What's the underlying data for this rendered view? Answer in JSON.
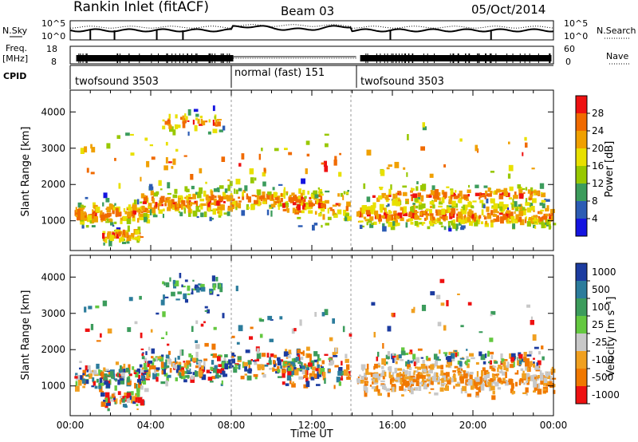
{
  "header": {
    "station": "Rankin Inlet (fitACF)",
    "beam": "Beam 03",
    "date": "05/Oct/2014"
  },
  "noise_panel": {
    "left_label": "N.Sky",
    "right_label": "N.Search",
    "left_ticks": [
      "10^5",
      "10^0"
    ],
    "right_ticks": [
      "10^5",
      "10^0"
    ]
  },
  "freq_panel": {
    "left_label_line1": "Freq.",
    "left_label_line2": "[MHz]",
    "right_label": "Nave",
    "left_ticks": [
      "18",
      "8"
    ],
    "right_ticks": [
      "60",
      "0"
    ]
  },
  "cpid": {
    "label": "CPID",
    "segments": [
      {
        "name": "twofsound 3503",
        "start_hour": 0,
        "end_hour": 8
      },
      {
        "name": "normal (fast) 151",
        "start_hour": 8,
        "end_hour": 14.2
      },
      {
        "name": "twofsound 3503",
        "start_hour": 14.2,
        "end_hour": 24
      }
    ]
  },
  "power_scale": {
    "label": "Power [dB]",
    "ticks": [
      "28",
      "24",
      "20",
      "16",
      "12",
      "8",
      "4"
    ],
    "colors": [
      "#ee1111",
      "#f06a00",
      "#f0a000",
      "#e8e000",
      "#98c800",
      "#3c9c5c",
      "#2c5cb4",
      "#1414e0"
    ]
  },
  "velocity_scale": {
    "label": "Velocity [m s⁻¹]",
    "ticks": [
      "1000",
      "500",
      "100",
      "25",
      "-25",
      "-100",
      "-500",
      "-1000"
    ],
    "colors": [
      "#1c3ca0",
      "#2c7c9c",
      "#3c9c5c",
      "#64c840",
      "#c8c8c8",
      "#f0a020",
      "#f07800",
      "#ee1111"
    ]
  },
  "x_axis": {
    "label": "Time UT",
    "ticks": [
      "00:00",
      "04:00",
      "08:00",
      "12:00",
      "16:00",
      "20:00",
      "00:00"
    ]
  },
  "chart_data": [
    {
      "type": "heatmap",
      "title": "Power",
      "ylabel": "Slant Range [km]",
      "y_ticks": [
        1000,
        2000,
        3000,
        4000
      ],
      "ylim": [
        180,
        4600
      ],
      "xlim": [
        0,
        24
      ],
      "colorbar": "Power [dB]",
      "colorbar_range": [
        0,
        30
      ]
    },
    {
      "type": "heatmap",
      "title": "Velocity",
      "ylabel": "Slant Range [km]",
      "y_ticks": [
        1000,
        2000,
        3000,
        4000
      ],
      "ylim": [
        180,
        4600
      ],
      "xlim": [
        0,
        24
      ],
      "colorbar": "Velocity [m s⁻¹]",
      "colorbar_range": [
        -1000,
        1000
      ]
    }
  ]
}
